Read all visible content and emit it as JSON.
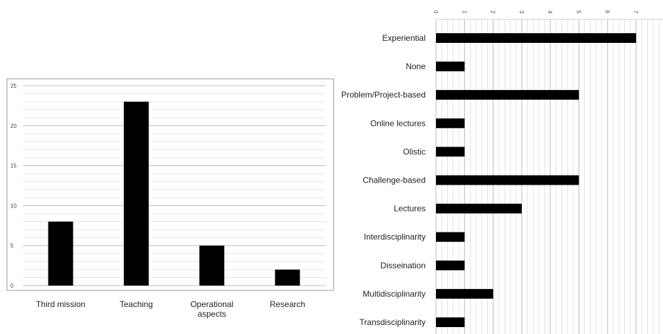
{
  "chart_data": [
    {
      "type": "bar",
      "orientation": "vertical",
      "title": "",
      "xlabel": "",
      "ylabel": "",
      "ylim": [
        0,
        25
      ],
      "y_ticks": [
        "0",
        "5",
        "10",
        "15",
        "20",
        "25"
      ],
      "grid": true,
      "legend": "none",
      "categories": [
        [
          "Third mission"
        ],
        [
          "Teaching"
        ],
        [
          "Operational",
          "aspects"
        ],
        [
          "Research"
        ]
      ],
      "values": [
        8,
        23,
        5,
        2
      ]
    },
    {
      "type": "bar",
      "orientation": "horizontal",
      "title": "",
      "xlabel": "",
      "ylabel": "",
      "xlim": [
        0,
        7
      ],
      "x_ticks": [
        "0",
        "1",
        "2",
        "3",
        "4",
        "5",
        "6",
        "7"
      ],
      "grid": true,
      "legend": "none",
      "categories": [
        "Experiential",
        "None",
        "Problem/Project-based",
        "Online lectures",
        "Olistic",
        "Challenge-based",
        "Lectures",
        "Interdisciplinarity",
        "Disseination",
        "Multidisciplinarity",
        "Transdisciplinarity"
      ],
      "values": [
        7,
        1,
        5,
        1,
        1,
        5,
        3,
        1,
        1,
        2,
        1
      ]
    }
  ],
  "colors": {
    "bar": "#000000",
    "grid": "#cccccc",
    "axis": "#999999"
  }
}
